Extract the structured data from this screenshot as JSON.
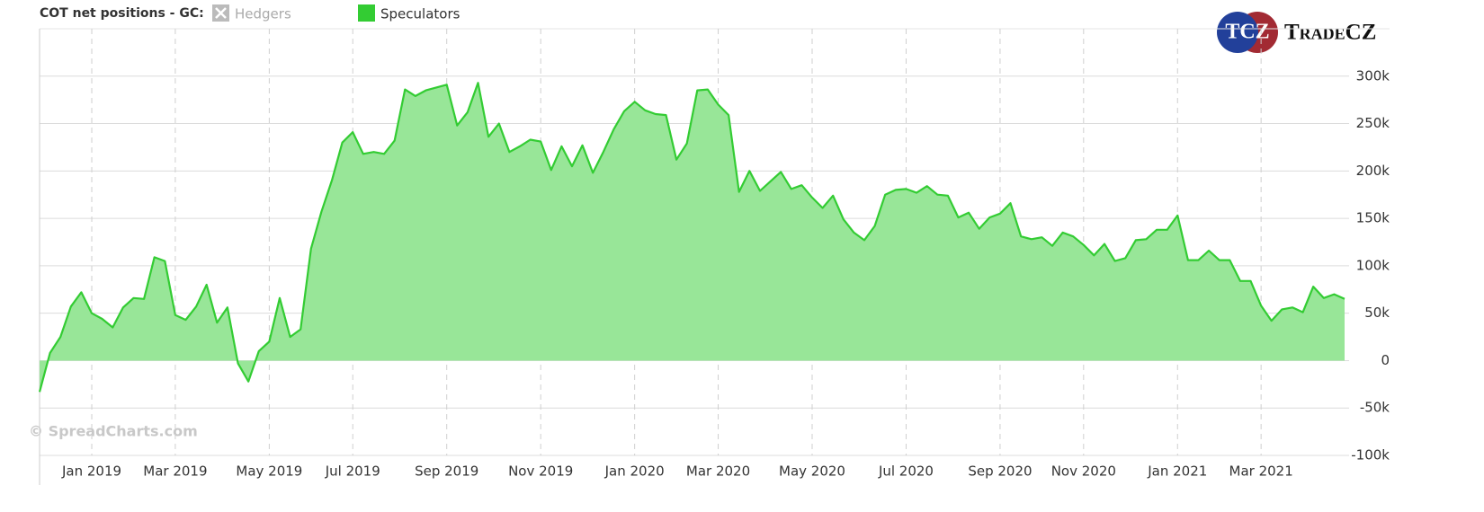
{
  "chart_data": {
    "type": "area",
    "title": "COT net positions - GC:",
    "watermark": "© SpreadCharts.com",
    "logo": {
      "badge": "TCZ",
      "name": "TradeCZ"
    },
    "categories": [
      null,
      null,
      null,
      null,
      null,
      "Jan 2019",
      null,
      null,
      null,
      null,
      null,
      null,
      null,
      "Mar 2019",
      null,
      null,
      null,
      null,
      null,
      null,
      null,
      null,
      "May 2019",
      null,
      null,
      null,
      null,
      null,
      null,
      null,
      "Jul 2019",
      null,
      null,
      null,
      null,
      null,
      null,
      null,
      null,
      "Sep 2019",
      null,
      null,
      null,
      null,
      null,
      null,
      null,
      null,
      "Nov 2019",
      null,
      null,
      null,
      null,
      null,
      null,
      null,
      null,
      "Jan 2020",
      null,
      null,
      null,
      null,
      null,
      null,
      null,
      "Mar 2020",
      null,
      null,
      null,
      null,
      null,
      null,
      null,
      null,
      "May 2020",
      null,
      null,
      null,
      null,
      null,
      null,
      null,
      null,
      "Jul 2020",
      null,
      null,
      null,
      null,
      null,
      null,
      null,
      null,
      "Sep 2020",
      null,
      null,
      null,
      null,
      null,
      null,
      null,
      "Nov 2020",
      null,
      null,
      null,
      null,
      null,
      null,
      null,
      null,
      "Jan 2021",
      null,
      null,
      null,
      null,
      null,
      null,
      null,
      "Mar 2021",
      null,
      null,
      null,
      null,
      null,
      null,
      null,
      null
    ],
    "series": [
      {
        "name": "Hedgers",
        "color": "#bbbbbb",
        "visible": false
      },
      {
        "name": "Speculators",
        "color": "#33cc33",
        "fill": "#98e698",
        "visible": true,
        "values": [
          -33000,
          8000,
          25000,
          57000,
          72000,
          50000,
          44000,
          35000,
          56000,
          66000,
          65000,
          109000,
          105000,
          48000,
          43000,
          57000,
          80000,
          40000,
          56000,
          -3000,
          -22000,
          10000,
          20000,
          66000,
          25000,
          33000,
          118000,
          157000,
          190000,
          230000,
          241000,
          218000,
          220000,
          218000,
          232000,
          286000,
          279000,
          285000,
          288000,
          291000,
          248000,
          262000,
          293000,
          236000,
          250000,
          220000,
          226000,
          233000,
          231000,
          201000,
          226000,
          205000,
          227000,
          198000,
          220000,
          244000,
          263000,
          273000,
          264000,
          260000,
          259000,
          212000,
          229000,
          285000,
          286000,
          270000,
          259000,
          178000,
          200000,
          179000,
          189000,
          199000,
          181000,
          185000,
          172000,
          161000,
          174000,
          149000,
          135000,
          127000,
          142000,
          175000,
          180000,
          181000,
          177000,
          184000,
          175000,
          174000,
          151000,
          156000,
          139000,
          151000,
          155000,
          166000,
          131000,
          128000,
          130000,
          121000,
          135000,
          131000,
          122000,
          111000,
          123000,
          105000,
          108000,
          127000,
          128000,
          138000,
          138000,
          153000,
          106000,
          106000,
          116000,
          106000,
          106000,
          84000,
          84000,
          58000,
          42000,
          54000,
          56000,
          51000,
          78000,
          66000,
          70000,
          65000
        ]
      }
    ],
    "ylim": [
      -100000,
      350000
    ],
    "yticks": [
      {
        "value": -100000,
        "label": "-100k"
      },
      {
        "value": -50000,
        "label": "-50k"
      },
      0,
      {
        "value": 50000,
        "label": "50k"
      },
      {
        "value": 100000,
        "label": "100k"
      },
      {
        "value": 150000,
        "label": "150k"
      },
      {
        "value": 200000,
        "label": "200k"
      },
      {
        "value": 250000,
        "label": "250k"
      },
      {
        "value": 300000,
        "label": "300k"
      }
    ],
    "grid": true
  }
}
